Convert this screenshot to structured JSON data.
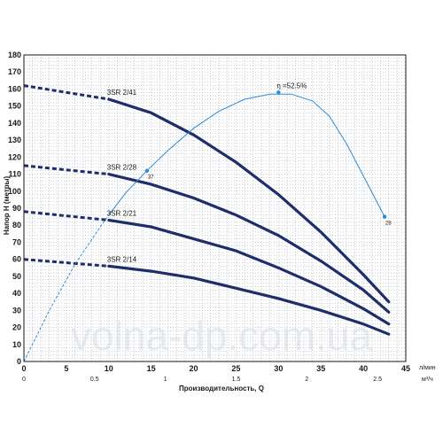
{
  "chart_data": {
    "type": "line",
    "title": "",
    "xlabel": "Производительность, Q",
    "ylabel": "Напор Н (метры)",
    "x_unit": "л/мин",
    "x2_unit": "м³/ч",
    "xlim": [
      0,
      45
    ],
    "ylim": [
      0,
      180
    ],
    "x_ticks": [
      0,
      5,
      10,
      15,
      20,
      25,
      30,
      35,
      40,
      45
    ],
    "y_ticks": [
      0,
      10,
      20,
      30,
      40,
      50,
      60,
      70,
      80,
      90,
      100,
      110,
      120,
      130,
      140,
      150,
      160,
      170,
      180
    ],
    "x2_ticks": [
      "0",
      "0.5",
      "1",
      "1.5",
      "2",
      "2.5"
    ],
    "x2_tick_values": [
      0,
      8.33,
      16.67,
      25,
      33.33,
      41.67
    ],
    "grid": true,
    "series": [
      {
        "name": "3SR 2/41",
        "dashed_x": [
          0,
          10
        ],
        "dashed_y": [
          162,
          154
        ],
        "x": [
          10,
          15,
          20,
          25,
          30,
          35,
          40,
          43
        ],
        "y": [
          154,
          146,
          133,
          117,
          98,
          76,
          51,
          35
        ]
      },
      {
        "name": "3SR 2/28",
        "dashed_x": [
          0,
          10
        ],
        "dashed_y": [
          115,
          110
        ],
        "x": [
          10,
          15,
          20,
          25,
          30,
          35,
          40,
          43
        ],
        "y": [
          110,
          104,
          96,
          86,
          74,
          59,
          42,
          29
        ]
      },
      {
        "name": "3SR 2/21",
        "dashed_x": [
          0,
          10
        ],
        "dashed_y": [
          88,
          83
        ],
        "x": [
          10,
          15,
          20,
          25,
          30,
          35,
          40,
          43
        ],
        "y": [
          83,
          79,
          72,
          65,
          55,
          44,
          31,
          22
        ]
      },
      {
        "name": "3SR 2/14",
        "dashed_x": [
          0,
          10
        ],
        "dashed_y": [
          60,
          56
        ],
        "x": [
          10,
          15,
          20,
          25,
          30,
          35,
          40,
          43
        ],
        "y": [
          56,
          53,
          49,
          43,
          37,
          30,
          22,
          16
        ]
      }
    ],
    "efficiency_curve": {
      "dashed_x": [
        0,
        3,
        6,
        9,
        10
      ],
      "dashed_y": [
        0,
        30,
        57,
        79,
        86
      ],
      "x": [
        10,
        12,
        14.5,
        17,
        20,
        23,
        26,
        29,
        31.5,
        34,
        36,
        38,
        40,
        42.5
      ],
      "y": [
        86,
        99,
        112,
        124,
        137,
        147,
        154,
        157,
        157,
        153,
        144,
        128,
        109,
        85
      ],
      "points": [
        {
          "x": 14.5,
          "y": 112,
          "label": "37"
        },
        {
          "x": 30,
          "y": 158,
          "label": "η =52.5%"
        },
        {
          "x": 42.5,
          "y": 85,
          "label": "28"
        }
      ]
    },
    "watermark": "volna-dp.com.ua"
  }
}
